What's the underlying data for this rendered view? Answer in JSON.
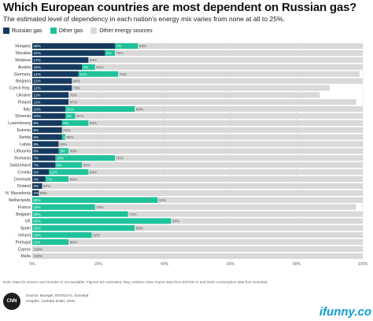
{
  "chart_data": {
    "type": "bar",
    "orientation": "horizontal",
    "stacked": true,
    "title": "Which European countries are most dependent on Russian gas?",
    "subtitle": "The estimated level of dependency in each nation's energy mix varies from none at all to 25%.",
    "categories": [
      "Hungary",
      "Slovakia",
      "Moldova",
      "Austria",
      "Germany",
      "Bulgaria",
      "Czech Rep.",
      "Ukraine",
      "Poland",
      "Italy",
      "Slovenia",
      "Luxembourg",
      "Estonia",
      "Serbia",
      "Latvia",
      "Lithuania",
      "Romania",
      "Switzerland",
      "Croatia",
      "Denmark",
      "Finland",
      "N. Macedonia",
      "Netherlands",
      "France",
      "Belgium",
      "UK",
      "Spain",
      "Ireland",
      "Portugal",
      "Cyprus",
      "Malta"
    ],
    "series": [
      {
        "name": "Russian gas",
        "color": "#163a5f",
        "values": [
          25,
          22,
          17,
          15,
          14,
          12,
          12,
          11,
          11,
          10,
          10,
          9,
          9,
          9,
          8,
          8,
          7,
          7,
          5,
          4,
          3,
          2,
          0,
          0,
          0,
          0,
          0,
          0,
          0,
          0,
          0
        ],
        "labels": [
          "25%",
          "22%",
          "17%",
          "15%",
          "14%",
          "12%",
          "12%",
          "11%",
          "11%",
          "10%",
          "10%",
          "9%",
          "9%",
          "9%",
          "8%",
          "8%",
          "7%",
          "7%",
          "5%",
          "4%",
          "3%",
          "2%",
          "",
          "",
          "",
          "",
          "",
          "",
          "",
          "",
          ""
        ]
      },
      {
        "name": "Other gas",
        "color": "#1fc29a",
        "values": [
          7,
          3,
          0,
          4,
          12,
          0,
          0,
          0,
          0,
          21,
          3,
          8,
          0,
          1,
          0,
          3,
          18,
          8,
          12,
          7,
          0,
          0,
          38,
          19,
          29,
          42,
          31,
          18,
          11,
          0,
          0
        ],
        "labels": [
          "7%",
          "3%",
          "",
          "4%",
          "12%",
          "",
          "",
          "",
          "",
          "21%",
          "3%",
          "8%",
          "",
          "1%",
          "",
          "3%",
          "18%",
          "8%",
          "12%",
          "7%",
          "",
          "",
          "38%",
          "19%",
          "29%",
          "42%",
          "31%",
          "18%",
          "11%",
          "",
          ""
        ]
      },
      {
        "name": "Other energy sources",
        "color": "#d9d9d9",
        "values": [
          68,
          75,
          83,
          81,
          73,
          88,
          78,
          76,
          87,
          69,
          87,
          83,
          91,
          90,
          92,
          89,
          75,
          85,
          83,
          89,
          97,
          98,
          62,
          79,
          71,
          58,
          69,
          82,
          89,
          100,
          100
        ],
        "labels": [
          "68%",
          "75%",
          "83%",
          "81%",
          "73%",
          "88%",
          "78%",
          "76%",
          "87%",
          "69%",
          "87%",
          "83%",
          "91%",
          "90%",
          "92%",
          "89%",
          "75%",
          "85%",
          "83%",
          "89%",
          "97%",
          "98%",
          "62%",
          "79%",
          "71%",
          "58%",
          "69%",
          "82%",
          "89%",
          "100%",
          "100%"
        ]
      }
    ],
    "xlim": [
      0,
      100
    ],
    "xticks": [
      "0%",
      "20%",
      "40%",
      "60%",
      "80%",
      "100%"
    ],
    "grid": true,
    "legend_position": "top-left"
  },
  "note": "Note: Data for Greece and Sweden is not available. Figures are estimates; they combine 2021 import data from ENTSO-G and 2020 consumption data from Eurostat.",
  "source_line": "Source: Bruegel, ENTSO-G, Eurostat",
  "graphic_line": "Graphic: Carlotta Dotto, CNN",
  "logo_text": "CNN",
  "watermark": "ifunny.co"
}
